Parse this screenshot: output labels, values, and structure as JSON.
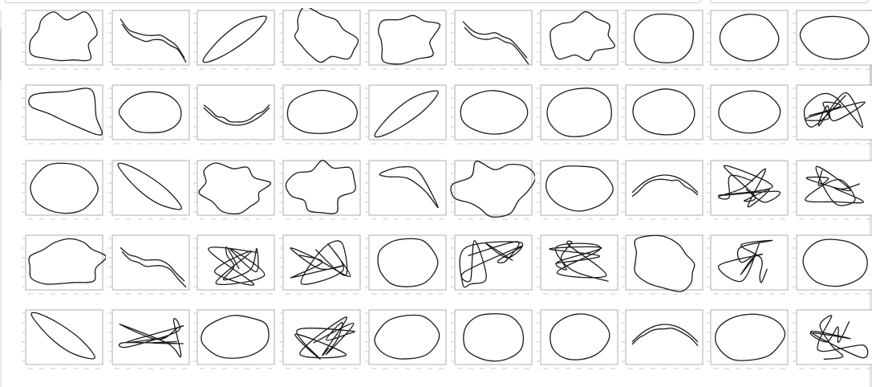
{
  "gallery": {
    "rows": 5,
    "columns": 10,
    "shapes": [
      [
        "blob",
        "band",
        "crescent",
        "blob",
        "blob",
        "band",
        "blob",
        "oval",
        "oval",
        "oval"
      ],
      [
        "triangle",
        "oval",
        "cup",
        "oval",
        "crescent",
        "oval",
        "oval",
        "oval",
        "oval",
        "tangle"
      ],
      [
        "oval",
        "crescent",
        "blob",
        "blob",
        "chevron",
        "blob",
        "oval",
        "arch",
        "tangle",
        "tangle"
      ],
      [
        "blob",
        "band",
        "tangle",
        "tangle",
        "oval",
        "tangle",
        "tangle",
        "blob",
        "tangle",
        "oval"
      ],
      [
        "crescent",
        "tangle",
        "oval",
        "tangle",
        "oval",
        "oval",
        "oval",
        "arch",
        "oval",
        "tangle"
      ]
    ]
  }
}
